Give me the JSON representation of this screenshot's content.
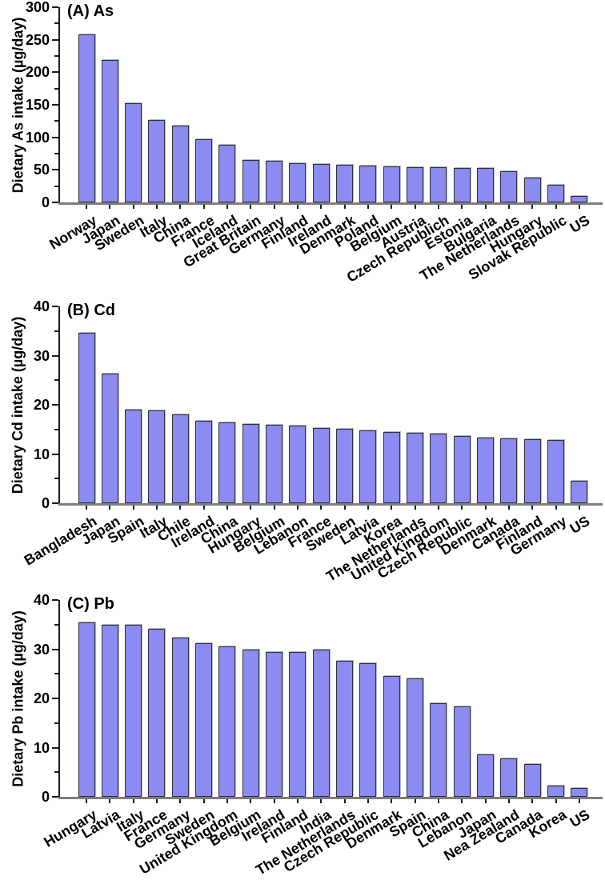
{
  "figure_title": "Dietary heavy metal intake by country, three-panel bar figure",
  "style": {
    "background": "#ffffff",
    "bar_fill": "#8b8bf2",
    "bar_border": "#2e2e36",
    "axis_color": "#1a1a1a",
    "baseline_color": "#7d7d7d",
    "text_color": "#000000"
  },
  "chart_data": [
    {
      "type": "bar",
      "title": "(A) As",
      "ylabel": "Dietary As intake (µg/day)",
      "xlabel": "",
      "ylim": [
        0,
        300
      ],
      "yticks": [
        0,
        50,
        100,
        150,
        200,
        250,
        300
      ],
      "yticks_minor": [
        25,
        75,
        125,
        175,
        225,
        275
      ],
      "grid": false,
      "legend": false,
      "categories": [
        "Norway",
        "Japan",
        "Sweden",
        "Italy",
        "China",
        "France",
        "Iceland",
        "Great Britain",
        "Germany",
        "Finland",
        "Ireland",
        "Denmark",
        "Poland",
        "Belgium",
        "Austria",
        "Czech Republich",
        "Estonia",
        "Bulgaria",
        "The Netherlands",
        "Hungary",
        "Slovak Republic",
        "US"
      ],
      "values": [
        258,
        219,
        152,
        127,
        118,
        97,
        88,
        65,
        64,
        60,
        59,
        58,
        57,
        55,
        54,
        54,
        53,
        53,
        48,
        38,
        27,
        10
      ]
    },
    {
      "type": "bar",
      "title": "(B) Cd",
      "ylabel": "Dietary Cd intake (µg/day)",
      "xlabel": "",
      "ylim": [
        0,
        40
      ],
      "yticks": [
        0,
        10,
        20,
        30,
        40
      ],
      "yticks_minor": [
        5,
        15,
        25,
        35
      ],
      "grid": false,
      "legend": false,
      "categories": [
        "Bangladesh",
        "Japan",
        "Spain",
        "Italy",
        "Chile",
        "Ireland",
        "China",
        "Hungary",
        "Belgium",
        "Lebanon",
        "France",
        "Sweden",
        "Latvia",
        "Korea",
        "The Netherlands",
        "United Kingdom",
        "Czech Republic",
        "Denmark",
        "Canada",
        "Finland",
        "Germany",
        "US"
      ],
      "values": [
        34.6,
        26.3,
        19.0,
        18.8,
        18.1,
        16.8,
        16.4,
        16.1,
        16.0,
        15.7,
        15.3,
        15.1,
        14.8,
        14.4,
        14.3,
        14.1,
        13.7,
        13.4,
        13.1,
        13.0,
        12.8,
        4.5
      ]
    },
    {
      "type": "bar",
      "title": "(C) Pb",
      "ylabel": "Dietary Pb intake (µg/day)",
      "xlabel": "",
      "ylim": [
        0,
        40
      ],
      "yticks": [
        0,
        10,
        20,
        30,
        40
      ],
      "yticks_minor": [
        5,
        15,
        25,
        35
      ],
      "grid": false,
      "legend": false,
      "categories": [
        "Hungary",
        "Latvia",
        "Italy",
        "France",
        "Germany",
        "Sweden",
        "United Kingdom",
        "Belgium",
        "Ireland",
        "Finland",
        "India",
        "The Netherlands",
        "Czech Republic",
        "Denmark",
        "Spain",
        "China",
        "Lebanon",
        "Japan",
        "Nea Zealand",
        "Canada",
        "Korea",
        "US"
      ],
      "values": [
        35.5,
        34.9,
        34.9,
        34.2,
        32.4,
        31.2,
        30.6,
        30.0,
        29.4,
        29.4,
        29.9,
        27.6,
        27.1,
        24.6,
        24.0,
        19.1,
        18.4,
        8.6,
        7.8,
        6.6,
        2.2,
        1.8
      ]
    }
  ]
}
